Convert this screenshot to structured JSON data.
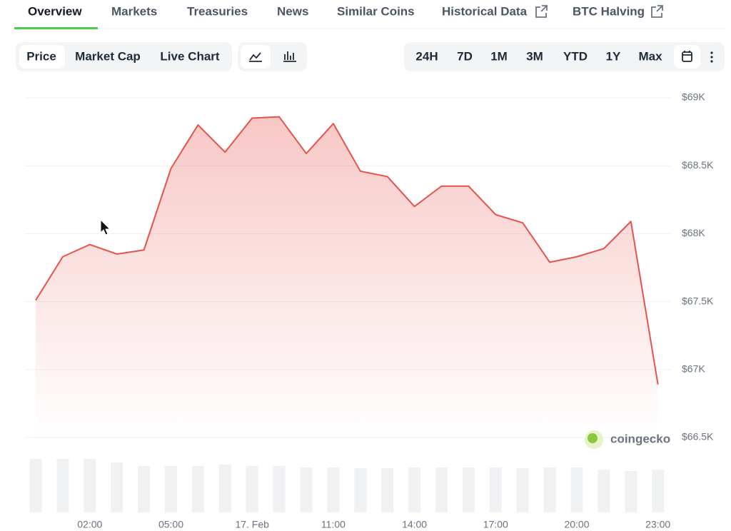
{
  "tabs": [
    "Overview",
    "Markets",
    "Treasuries",
    "News",
    "Similar Coins",
    "Historical Data",
    "BTC Halving"
  ],
  "chart_views": [
    "Price",
    "Market Cap",
    "Live Chart"
  ],
  "ranges": [
    "24H",
    "7D",
    "1M",
    "3M",
    "YTD",
    "1Y",
    "Max"
  ],
  "chart_data": {
    "type": "line",
    "categories": [
      null,
      null,
      "02:00",
      null,
      null,
      "05:00",
      null,
      null,
      "17. Feb",
      null,
      null,
      "11:00",
      null,
      null,
      "14:00",
      null,
      null,
      "17:00",
      null,
      null,
      "20:00",
      null,
      null,
      "23:00"
    ],
    "values": [
      67510,
      67830,
      67920,
      67850,
      67880,
      68480,
      68800,
      68600,
      68850,
      68860,
      68590,
      68810,
      68460,
      68420,
      68200,
      68350,
      68350,
      68140,
      68080,
      67790,
      67830,
      67890,
      68090,
      66890
    ],
    "volume": [
      75,
      75,
      75,
      70,
      65,
      65,
      65,
      67,
      65,
      65,
      63,
      63,
      62,
      62,
      63,
      63,
      63,
      63,
      62,
      63,
      63,
      60,
      58,
      60
    ],
    "color": "#e5534b",
    "ylim": [
      66500,
      69000
    ],
    "yticks": [
      {
        "value": 66500,
        "label": "$66.5K"
      },
      {
        "value": 67000,
        "label": "$67K"
      },
      {
        "value": 67500,
        "label": "$67.5K"
      },
      {
        "value": 68000,
        "label": "$68K"
      },
      {
        "value": 68500,
        "label": "$68.5K"
      },
      {
        "value": 69000,
        "label": "$69K"
      }
    ],
    "grid": true,
    "watermark": "coingecko"
  }
}
